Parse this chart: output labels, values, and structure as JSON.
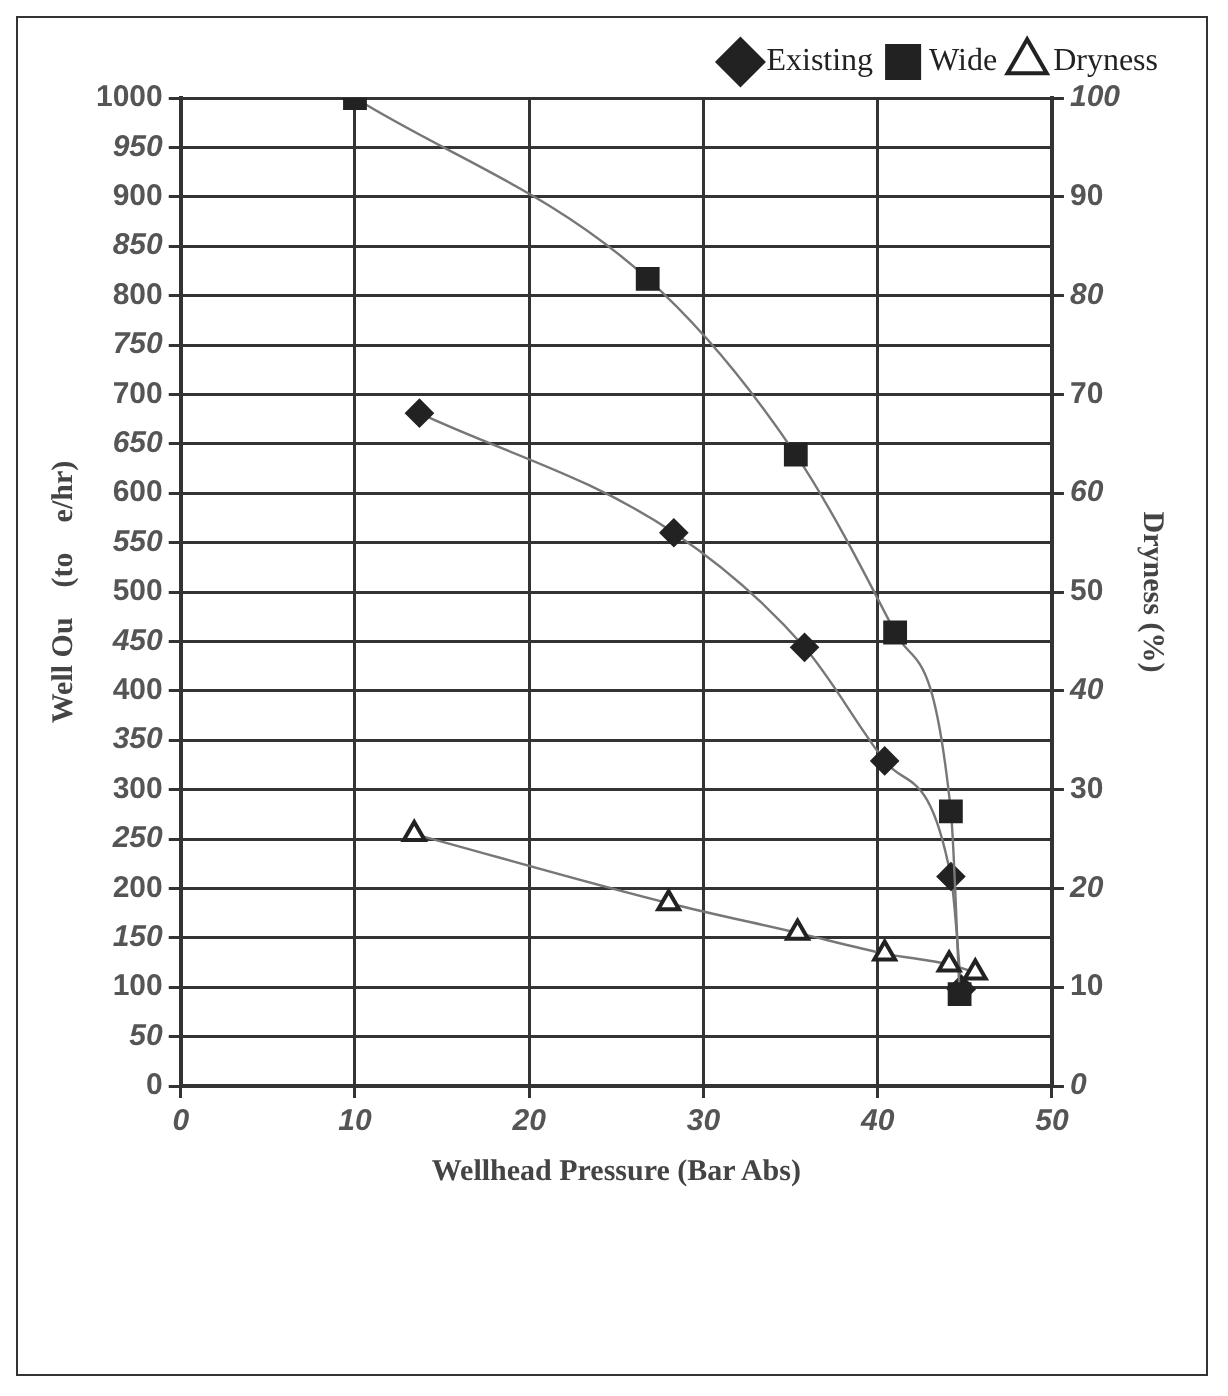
{
  "chart_data": {
    "type": "line",
    "xlabel": "Wellhead Pressure (Bar Abs)",
    "ylabel": "Well Ou    (to    e/hr)",
    "y2label": "Dryness (%)",
    "xlim": [
      0,
      50
    ],
    "xticks": [
      0,
      10,
      20,
      30,
      40,
      50
    ],
    "ylim": [
      0,
      1000
    ],
    "yticks": [
      0,
      50,
      100,
      150,
      200,
      250,
      300,
      350,
      400,
      450,
      500,
      550,
      600,
      650,
      700,
      750,
      800,
      850,
      900,
      950,
      1000
    ],
    "y2lim": [
      0,
      100
    ],
    "y2ticks": [
      0,
      10,
      20,
      30,
      40,
      50,
      60,
      70,
      80,
      90,
      100
    ],
    "grid": true,
    "legend": "top right",
    "series": [
      {
        "name": "Existing",
        "color": "#222222",
        "marker": "diamond",
        "x": [
          13.7,
          28.3,
          35.8,
          40.4,
          44.2,
          44.8
        ],
        "values": [
          681,
          560,
          444,
          329,
          212,
          98
        ]
      },
      {
        "name": "Wide",
        "color": "#222222",
        "marker": "square",
        "x": [
          10,
          26.8,
          35.3,
          41.0,
          44.2,
          44.7
        ],
        "values": [
          1000,
          817,
          639,
          459,
          278,
          93
        ]
      },
      {
        "name": "Dryness",
        "color": "#222222",
        "marker": "triangle",
        "axis": "y2",
        "x": [
          13.4,
          28.0,
          35.4,
          40.4,
          44.1,
          45.6
        ],
        "values": [
          25.5,
          18.5,
          15.5,
          13.4,
          12.3,
          11.5
        ]
      }
    ]
  }
}
